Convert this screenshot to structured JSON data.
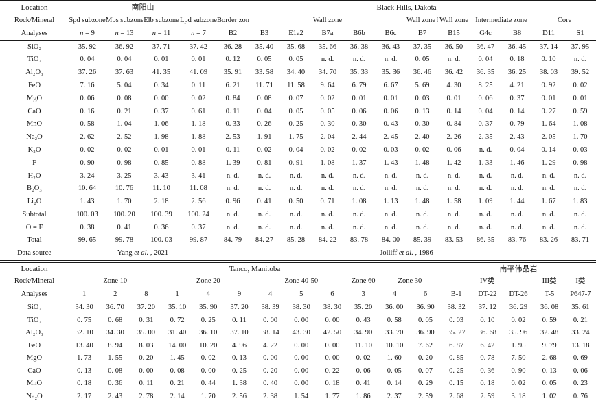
{
  "table1": {
    "location_label": "Location",
    "rock_mineral_label": "Rock/Mineral",
    "analyses_label": "Analyses",
    "data_source_label": "Data source",
    "locations": [
      {
        "name": "南阳山",
        "colspan": 4
      },
      {
        "name": "Black Hills, Dakota",
        "colspan": 12
      }
    ],
    "groups": [
      {
        "name": "Spd subzone",
        "colspan": 1
      },
      {
        "name": "Mbs subzone",
        "colspan": 1
      },
      {
        "name": "Elb subzone",
        "colspan": 1
      },
      {
        "name": "Lpd subzone",
        "colspan": 1
      },
      {
        "name": "Border zone",
        "colspan": 1
      },
      {
        "name": "Wall zone",
        "colspan": 5
      },
      {
        "name": "Wall zone F",
        "colspan": 1
      },
      {
        "name": "Wall zone",
        "colspan": 1
      },
      {
        "name": "Intermediate zone",
        "colspan": 2
      },
      {
        "name": "Core",
        "colspan": 2
      }
    ],
    "analyses": [
      "n = 9",
      "n = 13",
      "n = 11",
      "n = 7",
      "B2",
      "B3",
      "E1a2",
      "B7a",
      "B6b",
      "B6c",
      "B7",
      "B15",
      "G4c",
      "B8",
      "D11",
      "S1"
    ],
    "rows": [
      {
        "label": "SiO₂",
        "values": [
          "35. 92",
          "36. 92",
          "37. 71",
          "37. 42",
          "36. 28",
          "35. 40",
          "35. 68",
          "35. 66",
          "36. 38",
          "36. 43",
          "37. 35",
          "36. 50",
          "36. 47",
          "36. 45",
          "37. 14",
          "37. 95"
        ]
      },
      {
        "label": "TiO₂",
        "values": [
          "0. 04",
          "0. 04",
          "0. 01",
          "0. 01",
          "0. 12",
          "0. 05",
          "0. 05",
          "n. d.",
          "n. d.",
          "n. d.",
          "0. 05",
          "n. d.",
          "0. 04",
          "0. 18",
          "0. 10",
          "n. d."
        ]
      },
      {
        "label": "Al₂O₃",
        "values": [
          "37. 26",
          "37. 63",
          "41. 35",
          "41. 09",
          "35. 91",
          "33. 58",
          "34. 40",
          "34. 70",
          "35. 33",
          "35. 36",
          "36. 46",
          "36. 42",
          "36. 35",
          "36. 25",
          "38. 03",
          "39. 52"
        ]
      },
      {
        "label": "FeO",
        "values": [
          "7. 16",
          "5. 04",
          "0. 34",
          "0. 11",
          "6. 21",
          "11. 71",
          "11. 58",
          "9. 64",
          "6. 79",
          "6. 67",
          "5. 69",
          "4. 30",
          "8. 25",
          "4. 21",
          "0. 92",
          "0. 02"
        ]
      },
      {
        "label": "MgO",
        "values": [
          "0. 06",
          "0. 08",
          "0. 00",
          "0. 02",
          "0. 84",
          "0. 08",
          "0. 07",
          "0. 02",
          "0. 01",
          "0. 01",
          "0. 03",
          "0. 01",
          "0. 06",
          "0. 37",
          "0. 01",
          "0. 01"
        ]
      },
      {
        "label": "CaO",
        "values": [
          "0. 16",
          "0. 21",
          "0. 37",
          "0. 61",
          "0. 11",
          "0. 04",
          "0. 05",
          "0. 05",
          "0. 06",
          "0. 06",
          "0. 13",
          "0. 14",
          "0. 04",
          "0. 14",
          "0. 27",
          "0. 59"
        ]
      },
      {
        "label": "MnO",
        "values": [
          "0. 58",
          "1. 04",
          "1. 06",
          "1. 18",
          "0. 33",
          "0. 26",
          "0. 25",
          "0. 30",
          "0. 30",
          "0. 43",
          "0. 30",
          "0. 84",
          "0. 37",
          "0. 79",
          "1. 64",
          "1. 08"
        ]
      },
      {
        "label": "Na₂O",
        "values": [
          "2. 62",
          "2. 52",
          "1. 98",
          "1. 88",
          "2. 53",
          "1. 91",
          "1. 75",
          "2. 04",
          "2. 44",
          "2. 45",
          "2. 40",
          "2. 26",
          "2. 35",
          "2. 43",
          "2. 05",
          "1. 70"
        ]
      },
      {
        "label": "K₂O",
        "values": [
          "0. 02",
          "0. 02",
          "0. 01",
          "0. 01",
          "0. 11",
          "0. 02",
          "0. 04",
          "0. 02",
          "0. 02",
          "0. 03",
          "0. 02",
          "0. 06",
          "n. d.",
          "0. 04",
          "0. 14",
          "0. 03"
        ]
      },
      {
        "label": "F",
        "values": [
          "0. 90",
          "0. 98",
          "0. 85",
          "0. 88",
          "1. 39",
          "0. 81",
          "0. 91",
          "1. 08",
          "1. 37",
          "1. 43",
          "1. 48",
          "1. 42",
          "1. 33",
          "1. 46",
          "1. 29",
          "0. 98"
        ]
      },
      {
        "label": "H₂O",
        "values": [
          "3. 24",
          "3. 25",
          "3. 43",
          "3. 41",
          "n. d.",
          "n. d.",
          "n. d.",
          "n. d.",
          "n. d.",
          "n. d.",
          "n. d.",
          "n. d.",
          "n. d.",
          "n. d.",
          "n. d.",
          "n. d."
        ]
      },
      {
        "label": "B₂O₃",
        "values": [
          "10. 64",
          "10. 76",
          "11. 10",
          "11. 08",
          "n. d.",
          "n. d.",
          "n. d.",
          "n. d.",
          "n. d.",
          "n. d.",
          "n. d.",
          "n. d.",
          "n. d.",
          "n. d.",
          "n. d.",
          "n. d."
        ]
      },
      {
        "label": "Li₂O",
        "values": [
          "1. 43",
          "1. 70",
          "2. 18",
          "2. 56",
          "0. 96",
          "0. 41",
          "0. 50",
          "0. 71",
          "1. 08",
          "1. 13",
          "1. 48",
          "1. 58",
          "1. 09",
          "1. 44",
          "1. 67",
          "1. 83"
        ]
      },
      {
        "label": "Subtotal",
        "values": [
          "100. 03",
          "100. 20",
          "100. 39",
          "100. 24",
          "n. d.",
          "n. d.",
          "n. d.",
          "n. d.",
          "n. d.",
          "n. d.",
          "n. d.",
          "n. d.",
          "n. d.",
          "n. d.",
          "n. d.",
          "n. d."
        ]
      },
      {
        "label": "O = F",
        "values": [
          "0. 38",
          "0. 41",
          "0. 36",
          "0. 37",
          "n. d.",
          "n. d.",
          "n. d.",
          "n. d.",
          "n. d.",
          "n. d.",
          "n. d.",
          "n. d.",
          "n. d.",
          "n. d.",
          "n. d.",
          "n. d."
        ]
      },
      {
        "label": "Total",
        "values": [
          "99. 65",
          "99. 78",
          "100. 03",
          "99. 87",
          "84. 79",
          "84. 27",
          "85. 28",
          "84. 22",
          "83. 78",
          "84. 00",
          "85. 39",
          "83. 53",
          "86. 35",
          "83. 76",
          "83. 26",
          "83. 71"
        ]
      }
    ],
    "data_sources": [
      {
        "text": "Yang et al. , 2021",
        "colspan": 4
      },
      {
        "text": "Jolliff et al. , 1986",
        "colspan": 12
      }
    ]
  },
  "table2": {
    "location_label": "Location",
    "rock_mineral_label": "Rock/Mineral",
    "analyses_label": "Analyses",
    "locations": [
      {
        "name": "Tanco, Manitoba",
        "colspan": 12
      },
      {
        "name": "南平伟晶岩",
        "colspan": 5
      }
    ],
    "groups": [
      {
        "name": "Zone 10",
        "colspan": 3
      },
      {
        "name": "Zone 20",
        "colspan": 3
      },
      {
        "name": "Zone 40-50",
        "colspan": 3
      },
      {
        "name": "Zone 60",
        "colspan": 1
      },
      {
        "name": "Zone 30",
        "colspan": 2
      },
      {
        "name": "IV类",
        "colspan": 3
      },
      {
        "name": "III类",
        "colspan": 1
      },
      {
        "name": "I类",
        "colspan": 1
      }
    ],
    "analyses": [
      "1",
      "2",
      "8",
      "1",
      "4",
      "9",
      "4",
      "5",
      "6",
      "3",
      "4",
      "6",
      "B-1",
      "DT-22",
      "DT-26",
      "T-5",
      "P647-7"
    ],
    "rows": [
      {
        "label": "SiO₂",
        "values": [
          "34. 30",
          "36. 70",
          "37. 20",
          "35. 10",
          "35. 90",
          "37. 20",
          "38. 39",
          "38. 30",
          "38. 30",
          "35. 20",
          "36. 00",
          "36. 90",
          "38. 32",
          "37. 12",
          "36. 29",
          "36. 08",
          "35. 61"
        ]
      },
      {
        "label": "TiO₂",
        "values": [
          "0. 75",
          "0. 68",
          "0. 31",
          "0. 72",
          "0. 25",
          "0. 11",
          "0. 00",
          "0. 00",
          "0. 00",
          "0. 43",
          "0. 58",
          "0. 05",
          "0. 03",
          "0. 10",
          "0. 02",
          "0. 59",
          "0. 21"
        ]
      },
      {
        "label": "Al₂O₃",
        "values": [
          "32. 10",
          "34. 30",
          "35. 00",
          "31. 40",
          "36. 10",
          "37. 10",
          "38. 14",
          "43. 30",
          "42. 50",
          "34. 90",
          "33. 70",
          "36. 90",
          "35. 27",
          "36. 68",
          "35. 96",
          "32. 48",
          "33. 24"
        ]
      },
      {
        "label": "FeO",
        "values": [
          "13. 40",
          "8. 94",
          "8. 03",
          "14. 00",
          "10. 20",
          "4. 96",
          "4. 22",
          "0. 00",
          "0. 00",
          "11. 10",
          "10. 10",
          "7. 62",
          "6. 87",
          "6. 42",
          "1. 95",
          "9. 79",
          "13. 18"
        ]
      },
      {
        "label": "MgO",
        "values": [
          "1. 73",
          "1. 55",
          "0. 20",
          "1. 45",
          "0. 02",
          "0. 13",
          "0. 00",
          "0. 00",
          "0. 00",
          "0. 02",
          "1. 60",
          "0. 20",
          "0. 85",
          "0. 78",
          "7. 50",
          "2. 68",
          "0. 69"
        ]
      },
      {
        "label": "CaO",
        "values": [
          "0. 13",
          "0. 08",
          "0. 00",
          "0. 08",
          "0. 00",
          "0. 25",
          "0. 20",
          "0. 00",
          "0. 22",
          "0. 06",
          "0. 05",
          "0. 07",
          "0. 25",
          "0. 36",
          "0. 90",
          "0. 13",
          "0. 06"
        ]
      },
      {
        "label": "MnO",
        "values": [
          "0. 18",
          "0. 36",
          "0. 11",
          "0. 21",
          "0. 44",
          "1. 38",
          "0. 40",
          "0. 00",
          "0. 18",
          "0. 41",
          "0. 14",
          "0. 29",
          "0. 15",
          "0. 18",
          "0. 02",
          "0. 05",
          "0. 23"
        ]
      },
      {
        "label": "Na₂O",
        "values": [
          "2. 17",
          "2. 43",
          "2. 78",
          "2. 14",
          "1. 70",
          "2. 56",
          "2. 38",
          "1. 54",
          "1. 77",
          "1. 86",
          "2. 37",
          "2. 59",
          "2. 68",
          "2. 59",
          "3. 18",
          "1. 02",
          "0. 76"
        ]
      }
    ]
  }
}
